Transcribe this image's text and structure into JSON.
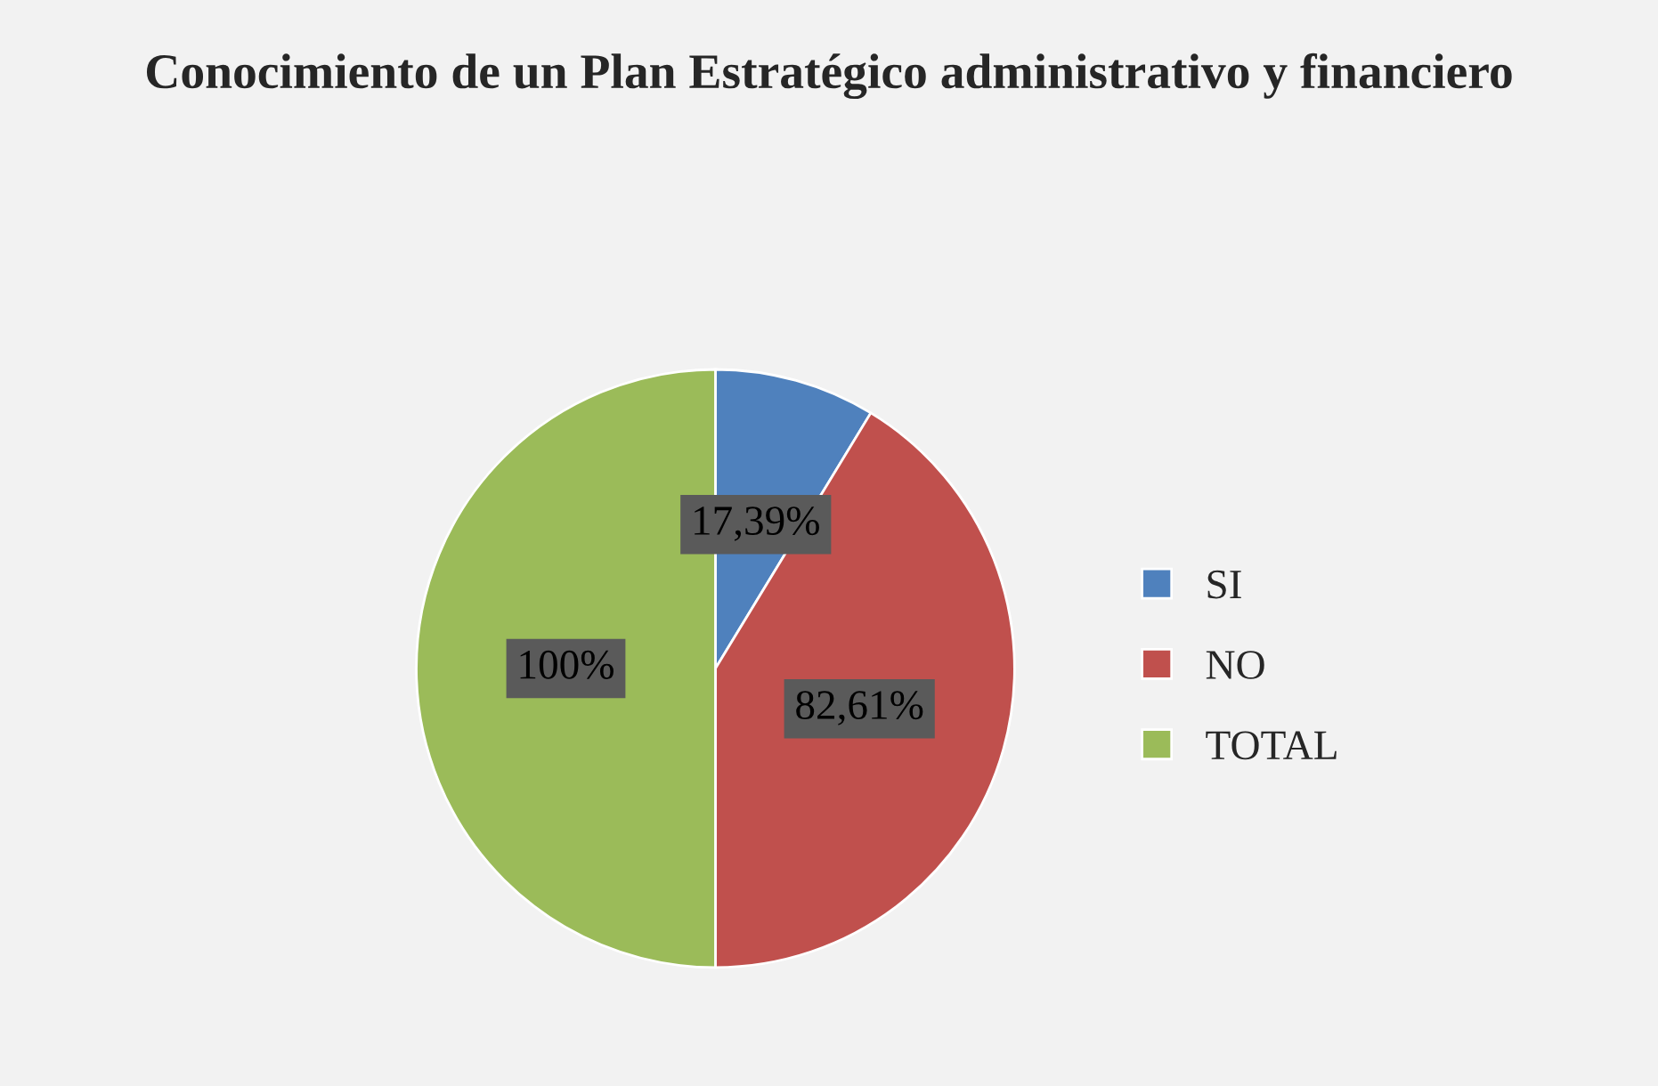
{
  "chart_data": {
    "type": "pie",
    "title": "Conocimiento de un Plan Estratégico administrativo y financiero",
    "categories": [
      "SI",
      "NO",
      "TOTAL"
    ],
    "values": [
      17.39,
      82.61,
      100
    ],
    "colors": [
      "#4f81bd",
      "#c0504d",
      "#9bbb59"
    ],
    "value_labels": [
      "17,39%",
      "82,61%",
      "100%"
    ],
    "legend": "right"
  }
}
